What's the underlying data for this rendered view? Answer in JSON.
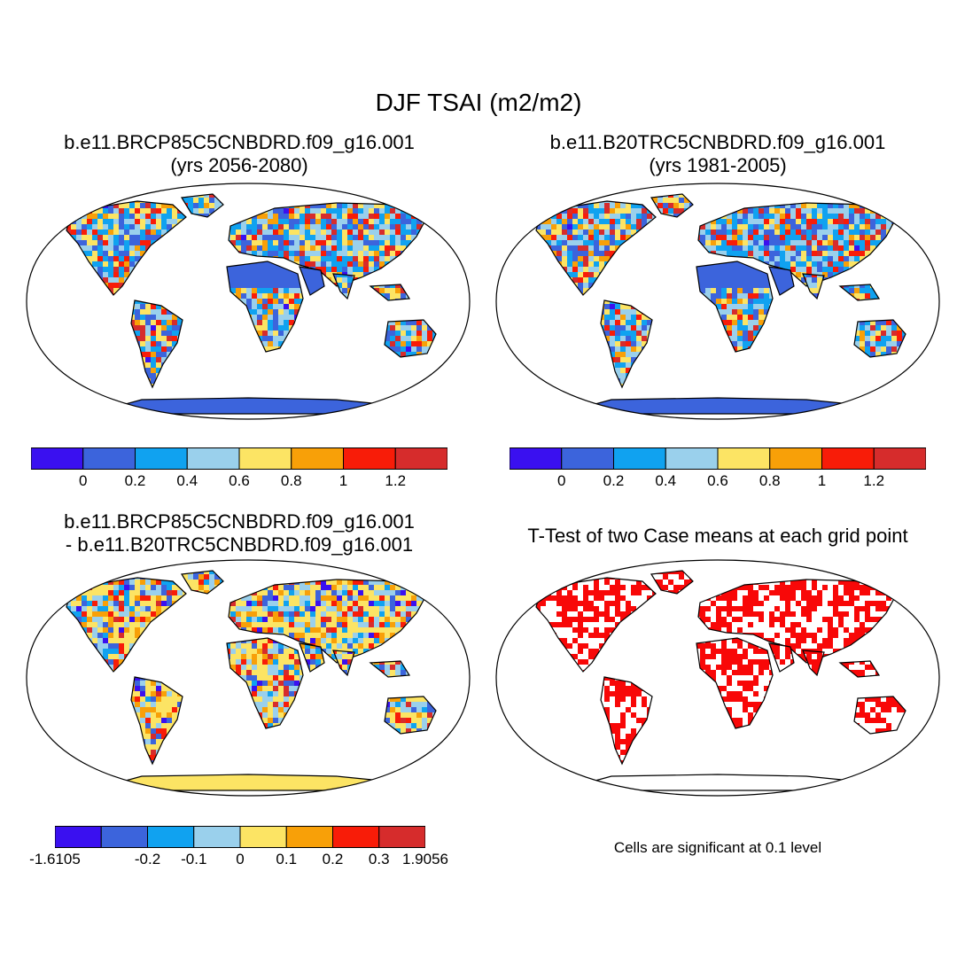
{
  "main_title": "DJF TSAI (m2/m2)",
  "panels": [
    {
      "title_line1": "b.e11.BRCP85C5CNBDRD.f09_g16.001",
      "title_line2": "(yrs 2056-2080)",
      "colorbar": {
        "colors": [
          "#3a10f0",
          "#3c64dc",
          "#10a2f0",
          "#9ad0ec",
          "#fce464",
          "#f8a008",
          "#f81c08",
          "#d62c2c"
        ],
        "tick_labels": [
          "0",
          "0.2",
          "0.4",
          "0.6",
          "0.8",
          "1",
          "1.2"
        ]
      }
    },
    {
      "title_line1": "b.e11.B20TRC5CNBDRD.f09_g16.001",
      "title_line2": "(yrs 1981-2005)",
      "colorbar": {
        "colors": [
          "#3a10f0",
          "#3c64dc",
          "#10a2f0",
          "#9ad0ec",
          "#fce464",
          "#f8a008",
          "#f81c08",
          "#d62c2c"
        ],
        "tick_labels": [
          "0",
          "0.2",
          "0.4",
          "0.6",
          "0.8",
          "1",
          "1.2"
        ]
      }
    },
    {
      "title_line1": "b.e11.BRCP85C5CNBDRD.f09_g16.001",
      "title_line2": "- b.e11.B20TRC5CNBDRD.f09_g16.001",
      "colorbar": {
        "colors": [
          "#3a10f0",
          "#3c64dc",
          "#10a2f0",
          "#9ad0ec",
          "#fce464",
          "#f8a008",
          "#f81c08",
          "#d62c2c"
        ],
        "tick_labels": [
          "-1.6105",
          "-0.2",
          "-0.1",
          "0",
          "0.1",
          "0.2",
          "0.3",
          "1.9056"
        ]
      }
    },
    {
      "title_line1": "T-Test of two Case means at each grid point",
      "note": "Cells are significant at 0.1 level",
      "significance_color": "#f80808"
    }
  ],
  "colors": {
    "ocean": "#ffffff",
    "frame": "#000000"
  }
}
